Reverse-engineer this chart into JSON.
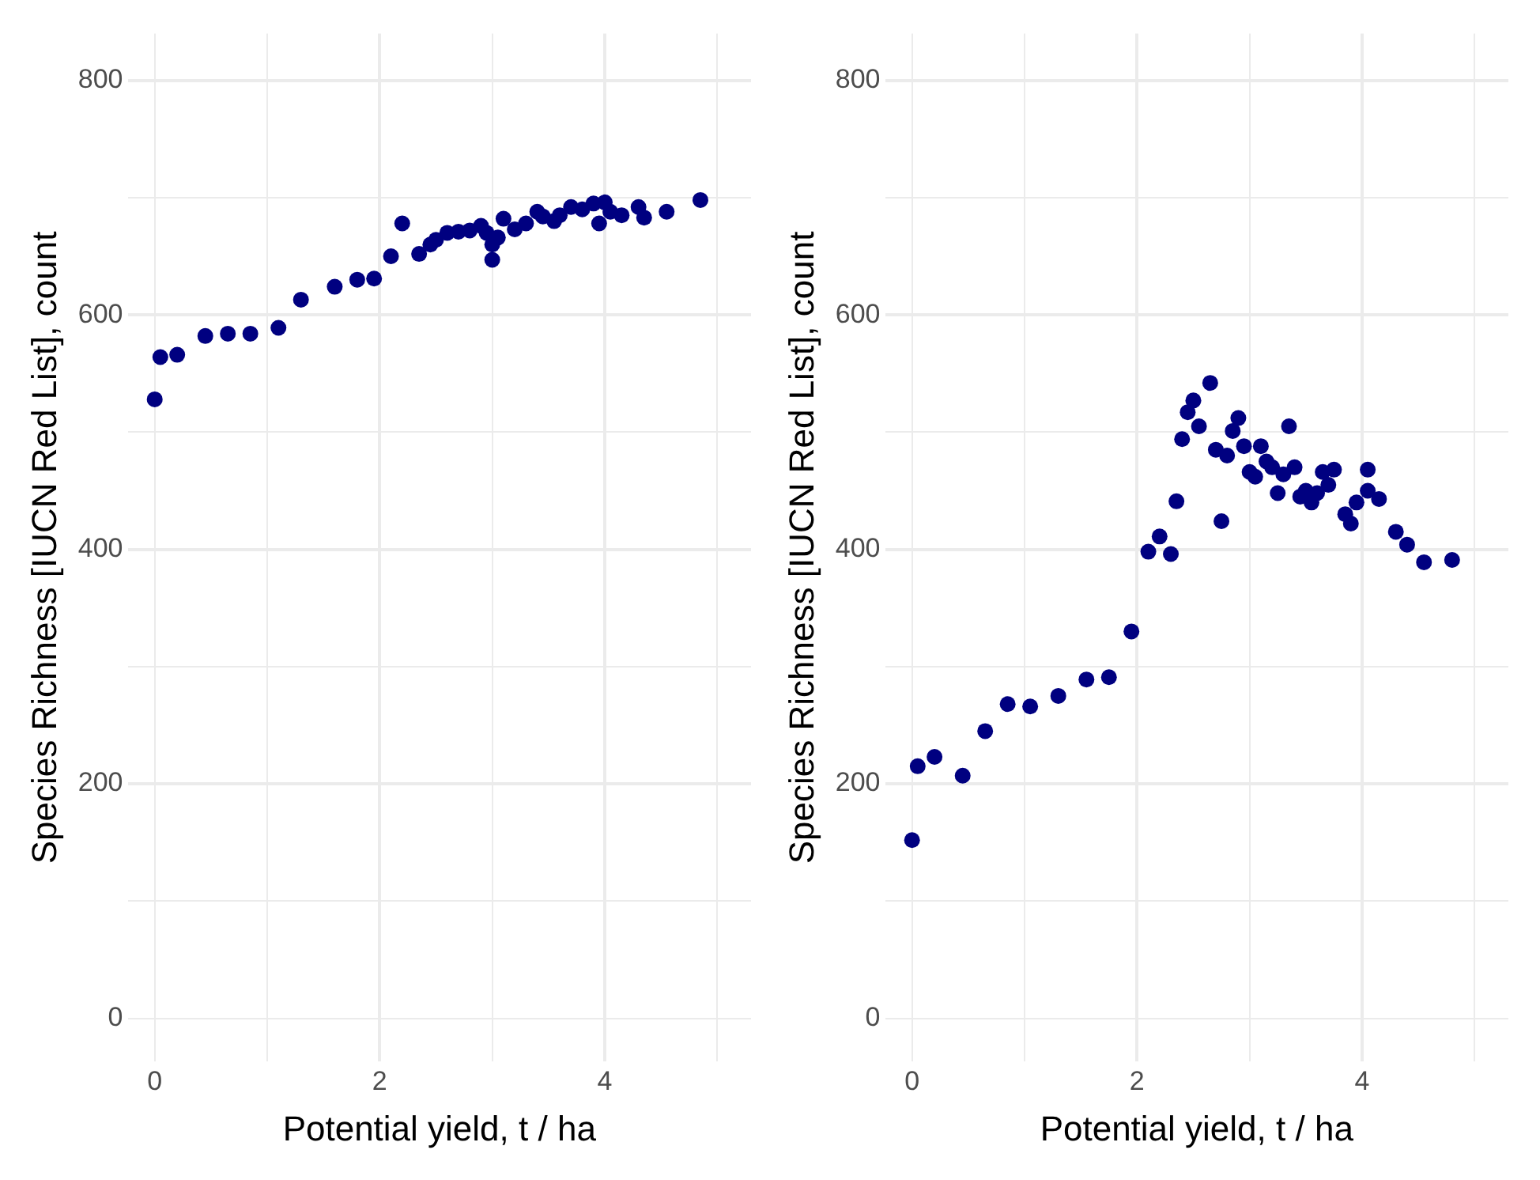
{
  "chart_data": [
    {
      "type": "scatter",
      "xlabel": "Potential yield, t / ha",
      "ylabel": "Species Richness [IUCN Red List], count",
      "xlim": [
        -0.24,
        5.3
      ],
      "ylim": [
        -37,
        840
      ],
      "xticks": [
        0,
        {
          "value": 1,
          "label": null
        },
        2,
        {
          "value": 3,
          "label": null
        },
        4,
        {
          "value": 5,
          "label": null
        }
      ],
      "yticks": [
        0,
        {
          "value": 100,
          "label": null
        },
        200,
        {
          "value": 300,
          "label": null
        },
        400,
        {
          "value": 500,
          "label": null
        },
        600,
        {
          "value": 700,
          "label": null
        },
        800
      ],
      "grid": true,
      "legend": false,
      "marker": "circle",
      "series": [
        {
          "color": "#000080",
          "x": [
            0,
            0.05,
            0.2,
            0.45,
            0.65,
            0.85,
            1.1,
            1.3,
            1.6,
            1.8,
            1.95,
            2.1,
            2.2,
            2.3,
            2.35,
            2.45,
            2.5,
            2.6,
            2.7,
            2.8,
            2.9,
            2.95,
            3.0,
            3.0,
            3.05,
            3.1,
            3.15,
            3.2,
            3.3,
            3.4,
            3.45,
            3.55,
            3.6,
            3.7,
            3.8,
            3.9,
            4.0,
            3.95,
            4.05,
            4.15,
            4.3,
            4.35,
            4.55,
            4.85
          ],
          "values": [
            528,
            564,
            566,
            582,
            584,
            584,
            589,
            613,
            624,
            630,
            631,
            650,
            678,
            null,
            652,
            660,
            664,
            670,
            671,
            672,
            676,
            670,
            660,
            647,
            666,
            682,
            null,
            673,
            678,
            688,
            684,
            680,
            685,
            692,
            690,
            695,
            696,
            678,
            688,
            685,
            692,
            683,
            688,
            698
          ]
        }
      ]
    },
    {
      "type": "scatter",
      "xlabel": "Potential yield, t / ha",
      "ylabel": "Species Richness [IUCN Red List], count",
      "xlim": [
        -0.24,
        5.3
      ],
      "ylim": [
        -37,
        840
      ],
      "xticks": [
        0,
        {
          "value": 1,
          "label": null
        },
        2,
        {
          "value": 3,
          "label": null
        },
        4,
        {
          "value": 5,
          "label": null
        }
      ],
      "yticks": [
        0,
        {
          "value": 100,
          "label": null
        },
        200,
        {
          "value": 300,
          "label": null
        },
        400,
        {
          "value": 500,
          "label": null
        },
        600,
        {
          "value": 700,
          "label": null
        },
        800
      ],
      "grid": true,
      "legend": false,
      "marker": "circle",
      "series": [
        {
          "color": "#000080",
          "x": [
            0,
            0.05,
            0.2,
            0.45,
            0.65,
            0.85,
            1.05,
            1.3,
            1.55,
            1.75,
            1.95,
            2.1,
            2.2,
            2.3,
            2.35,
            2.4,
            2.45,
            2.5,
            2.55,
            2.65,
            2.7,
            2.75,
            2.8,
            2.85,
            2.9,
            2.95,
            3.0,
            3.05,
            3.1,
            3.15,
            3.2,
            3.25,
            3.3,
            3.35,
            3.4,
            3.45,
            3.5,
            3.55,
            3.6,
            3.65,
            3.7,
            3.75,
            3.8,
            3.85,
            3.9,
            3.95,
            4.05,
            4.05,
            4.15,
            4.3,
            4.4,
            4.55,
            4.8
          ],
          "values": [
            152,
            215,
            223,
            207,
            245,
            268,
            266,
            275,
            289,
            291,
            330,
            398,
            411,
            396,
            441,
            494,
            517,
            527,
            505,
            542,
            485,
            424,
            480,
            501,
            512,
            488,
            466,
            462,
            488,
            475,
            470,
            448,
            464,
            505,
            470,
            445,
            450,
            440,
            448,
            466,
            455,
            468,
            null,
            430,
            422,
            440,
            468,
            450,
            443,
            415,
            404,
            389,
            391
          ]
        }
      ]
    }
  ]
}
